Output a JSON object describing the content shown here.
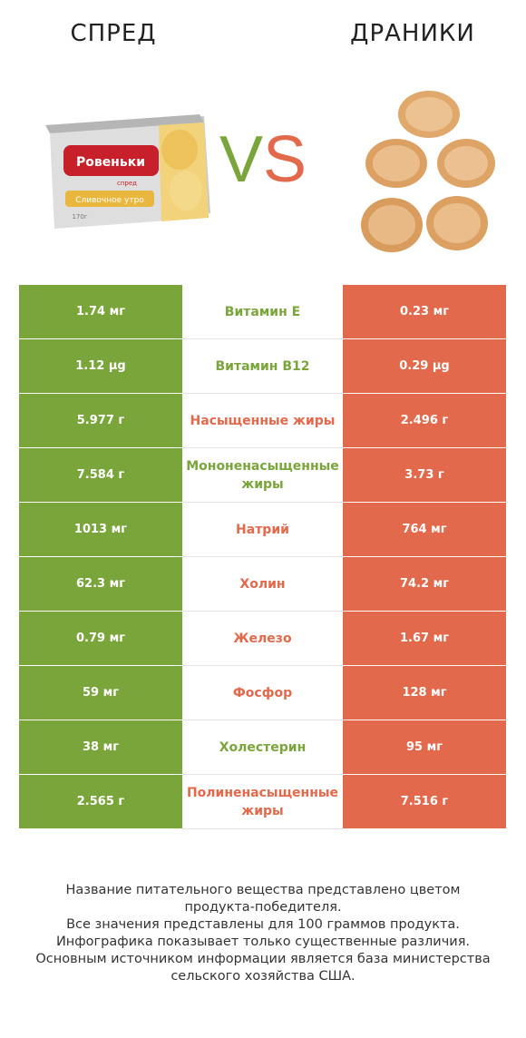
{
  "header": {
    "left_title": "СПРЕД",
    "right_title": "ДРАНИКИ",
    "vs_v": "V",
    "vs_s": "S"
  },
  "illustrations": {
    "left_package_brand": "Ровеньки",
    "left_package_product": "Сливочное утро",
    "left_package_small": "спред",
    "left_package_weight": "170г"
  },
  "colors": {
    "winner_left": "#7aa53a",
    "winner_right": "#e2694b"
  },
  "chart_data": {
    "type": "table",
    "columns": [
      "Спред",
      "Драники"
    ],
    "rows": [
      {
        "nutrient": "Витамин E",
        "left": "1.74 мг",
        "right": "0.23 мг",
        "winner": "left"
      },
      {
        "nutrient": "Витамин B12",
        "left": "1.12 µg",
        "right": "0.29 µg",
        "winner": "left"
      },
      {
        "nutrient": "Насыщенные жиры",
        "left": "5.977 г",
        "right": "2.496 г",
        "winner": "right"
      },
      {
        "nutrient": "Мононенасыщенные жиры",
        "left": "7.584 г",
        "right": "3.73 г",
        "winner": "left"
      },
      {
        "nutrient": "Натрий",
        "left": "1013 мг",
        "right": "764 мг",
        "winner": "right"
      },
      {
        "nutrient": "Холин",
        "left": "62.3 мг",
        "right": "74.2 мг",
        "winner": "right"
      },
      {
        "nutrient": "Железо",
        "left": "0.79 мг",
        "right": "1.67 мг",
        "winner": "right"
      },
      {
        "nutrient": "Фосфор",
        "left": "59 мг",
        "right": "128 мг",
        "winner": "right"
      },
      {
        "nutrient": "Холестерин",
        "left": "38 мг",
        "right": "95 мг",
        "winner": "left"
      },
      {
        "nutrient": "Полиненасыщенные жиры",
        "left": "2.565 г",
        "right": "7.516 г",
        "winner": "right"
      }
    ]
  },
  "footer": {
    "lines": [
      "Название питательного вещества представлено цветом",
      "продукта-победителя.",
      "Все значения представлены для 100 граммов продукта.",
      "Инфографика показывает только существенные различия.",
      "Основным источником информации является база министерства",
      "сельского хозяйства США."
    ]
  }
}
